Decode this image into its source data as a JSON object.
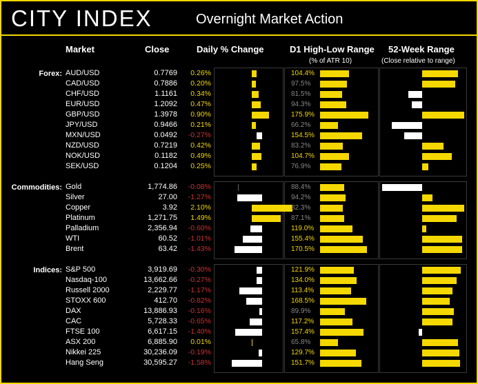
{
  "header": {
    "logo": "CITY INDEX",
    "title": "Overnight Market Action"
  },
  "columns": {
    "market": "Market",
    "close": "Close",
    "daily": "Daily % Change",
    "d1": "D1 High-Low Range",
    "d1_sub": "(% of ATR 10)",
    "wk52": "52-Week Range",
    "wk52_sub": "(Close relative to range)"
  },
  "chart_data": {
    "type": "table",
    "groups": [
      {
        "name": "Forex:",
        "rows": [
          {
            "market": "AUD/USD",
            "close": "0.7769",
            "change": "0.26%",
            "change_value": 0.26,
            "range_label": "104.4%",
            "range_value": 104.4,
            "wk52": 0.85
          },
          {
            "market": "CAD/USD",
            "close": "0.7886",
            "change": "0.20%",
            "change_value": 0.2,
            "range_label": "97.5%",
            "range_value": 97.5,
            "wk52": 0.78
          },
          {
            "market": "CHF/USD",
            "close": "1.1161",
            "change": "0.34%",
            "change_value": 0.34,
            "range_label": "81.5%",
            "range_value": 81.5,
            "wk52": -0.32
          },
          {
            "market": "EUR/USD",
            "close": "1.2092",
            "change": "0.47%",
            "change_value": 0.47,
            "range_label": "94.3%",
            "range_value": 94.3,
            "wk52": -0.25
          },
          {
            "market": "GBP/USD",
            "close": "1.3978",
            "change": "0.90%",
            "change_value": 0.9,
            "range_label": "175.9%",
            "range_value": 175.9,
            "wk52": 1.0
          },
          {
            "market": "JPY/USD",
            "close": "0.9466",
            "change": "0.21%",
            "change_value": 0.21,
            "range_label": "66.2%",
            "range_value": 66.2,
            "wk52": -0.72
          },
          {
            "market": "MXN/USD",
            "close": "0.0492",
            "change": "-0.27%",
            "change_value": -0.27,
            "range_label": "154.5%",
            "range_value": 154.5,
            "wk52": -0.42
          },
          {
            "market": "NZD/USD",
            "close": "0.7219",
            "change": "0.42%",
            "change_value": 0.42,
            "range_label": "83.2%",
            "range_value": 83.2,
            "wk52": 0.5
          },
          {
            "market": "NOK/USD",
            "close": "0.1182",
            "change": "0.49%",
            "change_value": 0.49,
            "range_label": "104.7%",
            "range_value": 104.7,
            "wk52": 0.7
          },
          {
            "market": "SEK/USD",
            "close": "0.1204",
            "change": "0.25%",
            "change_value": 0.25,
            "range_label": "76.9%",
            "range_value": 76.9,
            "wk52": 0.15
          }
        ]
      },
      {
        "name": "Commodities:",
        "rows": [
          {
            "market": "Gold",
            "close": "1,774.86",
            "change": "-0.08%",
            "change_value": -0.08,
            "range_label": "88.4%",
            "range_value": 88.4,
            "wk52": -0.95
          },
          {
            "market": "Silver",
            "close": "27.00",
            "change": "-1.27%",
            "change_value": -1.27,
            "range_label": "94.2%",
            "range_value": 94.2,
            "wk52": 0.25
          },
          {
            "market": "Copper",
            "close": "3.92",
            "change": "2.10%",
            "change_value": 2.1,
            "range_label": "82.3%",
            "range_value": 82.3,
            "wk52": 1.0
          },
          {
            "market": "Platinum",
            "close": "1,271.75",
            "change": "1.49%",
            "change_value": 1.49,
            "range_label": "87.1%",
            "range_value": 87.1,
            "wk52": 0.82
          },
          {
            "market": "Palladium",
            "close": "2,356.94",
            "change": "-0.60%",
            "change_value": -0.6,
            "range_label": "119.0%",
            "range_value": 119.0,
            "wk52": 0.1
          },
          {
            "market": "WTI",
            "close": "60.52",
            "change": "-1.01%",
            "change_value": -1.01,
            "range_label": "155.4%",
            "range_value": 155.4,
            "wk52": 0.95
          },
          {
            "market": "Brent",
            "close": "63.42",
            "change": "-1.43%",
            "change_value": -1.43,
            "range_label": "170.5%",
            "range_value": 170.5,
            "wk52": 0.95
          }
        ]
      },
      {
        "name": "Indices:",
        "rows": [
          {
            "market": "S&P 500",
            "close": "3,919.69",
            "change": "-0.30%",
            "change_value": -0.3,
            "range_label": "121.9%",
            "range_value": 121.9,
            "wk52": 0.92
          },
          {
            "market": "Nasdaq-100",
            "close": "13,662.66",
            "change": "-0.27%",
            "change_value": -0.27,
            "range_label": "134.0%",
            "range_value": 134.0,
            "wk52": 0.82
          },
          {
            "market": "Russell 2000",
            "close": "2,229.77",
            "change": "-1.17%",
            "change_value": -1.17,
            "range_label": "113.4%",
            "range_value": 113.4,
            "wk52": 0.72
          },
          {
            "market": "STOXX 600",
            "close": "412.70",
            "change": "-0.82%",
            "change_value": -0.82,
            "range_label": "168.5%",
            "range_value": 168.5,
            "wk52": 0.65
          },
          {
            "market": "DAX",
            "close": "13,886.93",
            "change": "-0.16%",
            "change_value": -0.16,
            "range_label": "89.9%",
            "range_value": 89.9,
            "wk52": 0.75
          },
          {
            "market": "CAC",
            "close": "5,728.33",
            "change": "-0.65%",
            "change_value": -0.65,
            "range_label": "117.2%",
            "range_value": 117.2,
            "wk52": 0.72
          },
          {
            "market": "FTSE 100",
            "close": "6,617.15",
            "change": "-1.40%",
            "change_value": -1.4,
            "range_label": "157.4%",
            "range_value": 157.4,
            "wk52": -0.08
          },
          {
            "market": "ASX 200",
            "close": "6,885.90",
            "change": "0.01%",
            "change_value": 0.01,
            "range_label": "65.8%",
            "range_value": 65.8,
            "wk52": 0.85
          },
          {
            "market": "Nikkei 225",
            "close": "30,236.09",
            "change": "-0.19%",
            "change_value": -0.19,
            "range_label": "129.7%",
            "range_value": 129.7,
            "wk52": 0.88
          },
          {
            "market": "Hang Seng",
            "close": "30,595.27",
            "change": "-1.58%",
            "change_value": -1.58,
            "range_label": "151.7%",
            "range_value": 151.7,
            "wk52": 0.9
          }
        ]
      }
    ],
    "colors": {
      "positive": "#f5d800",
      "negative": "#ffffff",
      "range_bar": "#f5d800",
      "neg_text": "#d03030",
      "pos_text": "#f5d800",
      "range_text": "#888888"
    }
  }
}
